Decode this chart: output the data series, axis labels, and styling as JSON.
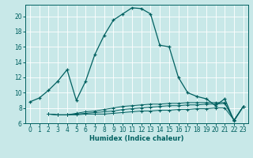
{
  "xlabel": "Humidex (Indice chaleur)",
  "bg_color": "#c8e8e8",
  "grid_color": "#ffffff",
  "line_color": "#006060",
  "xlim": [
    -0.5,
    23.5
  ],
  "ylim": [
    6,
    21.5
  ],
  "xticks": [
    0,
    1,
    2,
    3,
    4,
    5,
    6,
    7,
    8,
    9,
    10,
    11,
    12,
    13,
    14,
    15,
    16,
    17,
    18,
    19,
    20,
    21,
    22,
    23
  ],
  "yticks": [
    6,
    8,
    10,
    12,
    14,
    16,
    18,
    20
  ],
  "main_curve_x": [
    0,
    1,
    2,
    3,
    4,
    5,
    6,
    7,
    8,
    9,
    10,
    11,
    12,
    13,
    14,
    15,
    16,
    17,
    18,
    19,
    20,
    21,
    22,
    23
  ],
  "main_curve_y": [
    8.8,
    9.3,
    10.3,
    11.5,
    13.0,
    9.0,
    11.5,
    15.0,
    17.5,
    19.5,
    20.3,
    21.1,
    21.0,
    20.3,
    16.2,
    16.0,
    12.0,
    10.0,
    9.5,
    9.2,
    8.3,
    9.2,
    6.3,
    8.2
  ],
  "flat_curves": [
    {
      "x": [
        2,
        3,
        4,
        5,
        6,
        7,
        8,
        9,
        10,
        11,
        12,
        13,
        14,
        15,
        16,
        17,
        18,
        19,
        20,
        21,
        22,
        23
      ],
      "y": [
        7.2,
        7.1,
        7.1,
        7.1,
        7.2,
        7.2,
        7.2,
        7.3,
        7.4,
        7.5,
        7.6,
        7.6,
        7.7,
        7.7,
        7.8,
        7.8,
        7.9,
        7.9,
        8.0,
        8.0,
        6.4,
        8.2
      ]
    },
    {
      "x": [
        2,
        3,
        4,
        5,
        6,
        7,
        8,
        9,
        10,
        11,
        12,
        13,
        14,
        15,
        16,
        17,
        18,
        19,
        20,
        21,
        22,
        23
      ],
      "y": [
        7.2,
        7.1,
        7.1,
        7.2,
        7.3,
        7.4,
        7.5,
        7.6,
        7.8,
        7.9,
        8.0,
        8.1,
        8.2,
        8.3,
        8.3,
        8.4,
        8.4,
        8.5,
        8.5,
        8.6,
        6.4,
        8.2
      ]
    },
    {
      "x": [
        2,
        3,
        4,
        5,
        6,
        7,
        8,
        9,
        10,
        11,
        12,
        13,
        14,
        15,
        16,
        17,
        18,
        19,
        20,
        21,
        22,
        23
      ],
      "y": [
        7.2,
        7.1,
        7.1,
        7.3,
        7.5,
        7.6,
        7.8,
        8.0,
        8.2,
        8.3,
        8.4,
        8.5,
        8.5,
        8.6,
        8.6,
        8.7,
        8.7,
        8.7,
        8.7,
        8.7,
        6.4,
        8.2
      ]
    }
  ]
}
